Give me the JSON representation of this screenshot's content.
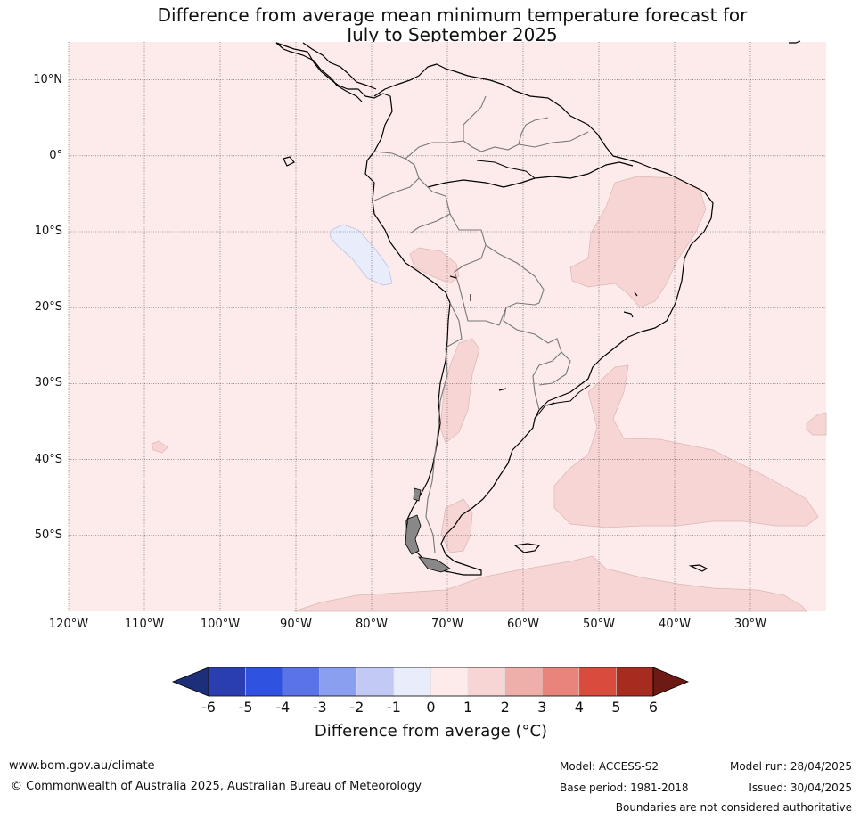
{
  "title_line1": "Difference from average mean minimum temperature forecast for",
  "title_line2": "July to September 2025",
  "lat_labels": [
    "10°N",
    "0°",
    "10°S",
    "20°S",
    "30°S",
    "40°S",
    "50°S"
  ],
  "lat_values": [
    10,
    0,
    -10,
    -20,
    -30,
    -40,
    -50
  ],
  "lon_labels": [
    "120°W",
    "110°W",
    "100°W",
    "90°W",
    "80°W",
    "70°W",
    "60°W",
    "50°W",
    "40°W",
    "30°W"
  ],
  "lon_values": [
    -120,
    -110,
    -100,
    -90,
    -80,
    -70,
    -60,
    -50,
    -40,
    -30
  ],
  "map_extent": {
    "lon_min": -120,
    "lon_max": -20,
    "lat_min": -60,
    "lat_max": 15
  },
  "colorbar": {
    "ticks": [
      "-6",
      "-5",
      "-4",
      "-3",
      "-2",
      "-1",
      "0",
      "1",
      "2",
      "3",
      "4",
      "5",
      "6"
    ],
    "colors": [
      "#2a3eb1",
      "#2f52e0",
      "#5b73e8",
      "#8b9ff0",
      "#c2c9f5",
      "#e8ecfb",
      "#fcebea",
      "#f6d5d4",
      "#eeaea9",
      "#e8847c",
      "#d94b3d",
      "#a82b20"
    ],
    "under_color": "#1e2f7a",
    "over_color": "#6e1a14",
    "label": "Difference from average (°C)"
  },
  "colors": {
    "background_anomaly": "#fcebea",
    "warm_anomaly": "#f6d5d4",
    "cool_anomaly": "#e8ecfb"
  },
  "footer": {
    "url": "www.bom.gov.au/climate",
    "copyright": "© Commonwealth of Australia 2025, Australian Bureau of Meteorology",
    "model": "Model: ACCESS-S2",
    "base_period": "Base period: 1981-2018",
    "model_run": "Model run: 28/04/2025",
    "issued": "Issued: 30/04/2025",
    "disclaimer": "Boundaries are not considered authoritative"
  }
}
